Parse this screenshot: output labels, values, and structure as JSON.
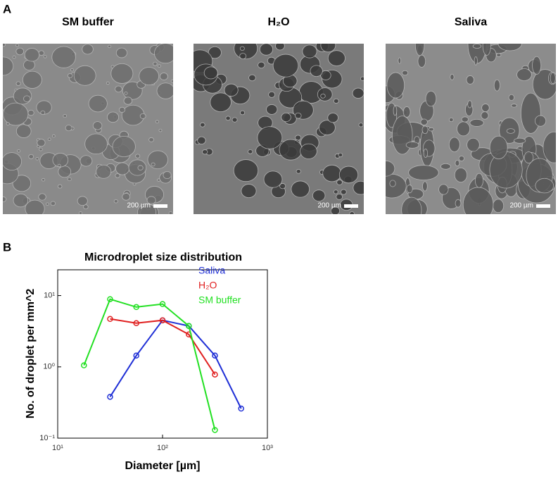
{
  "panel_a": {
    "label": "A",
    "images": [
      {
        "title": "SM buffer",
        "scale_bar": "200 µm"
      },
      {
        "title": "H₂O",
        "scale_bar": "200 µm"
      },
      {
        "title": "Saliva",
        "scale_bar": "200 µm"
      }
    ]
  },
  "panel_b": {
    "label": "B"
  },
  "chart_data": {
    "type": "line",
    "title": "Microdroplet size distribution",
    "x_label": "Diameter [µm]",
    "y_label": "No. of droplet per mm^2",
    "log_x": true,
    "log_y": true,
    "legend": "top-right",
    "xlim": [
      10,
      1000
    ],
    "ylim": [
      0.1,
      23
    ],
    "xticks": [
      {
        "value": 10,
        "label": "10¹"
      },
      {
        "value": 100,
        "label": "10²"
      },
      {
        "value": 1000,
        "label": "10³"
      }
    ],
    "yticks": [
      {
        "value": 0.1,
        "label": "10⁻¹"
      },
      {
        "value": 1,
        "label": "10⁰"
      },
      {
        "value": 10,
        "label": "10¹"
      }
    ],
    "series": [
      {
        "name": "Saliva",
        "color": "#1f2fd6",
        "x": [
          31.6,
          56.2,
          100,
          178,
          316,
          562
        ],
        "values": [
          0.38,
          1.44,
          4.5,
          3.75,
          1.44,
          0.26
        ]
      },
      {
        "name": "H₂O",
        "color": "#e02020",
        "x": [
          31.6,
          56.2,
          100,
          178,
          316
        ],
        "values": [
          4.7,
          4.1,
          4.5,
          2.85,
          0.78
        ]
      },
      {
        "name": "SM buffer",
        "color": "#22e022",
        "x": [
          17.8,
          31.6,
          56.2,
          100,
          178,
          316
        ],
        "values": [
          1.05,
          8.9,
          6.9,
          7.6,
          3.75,
          0.13
        ]
      }
    ]
  }
}
